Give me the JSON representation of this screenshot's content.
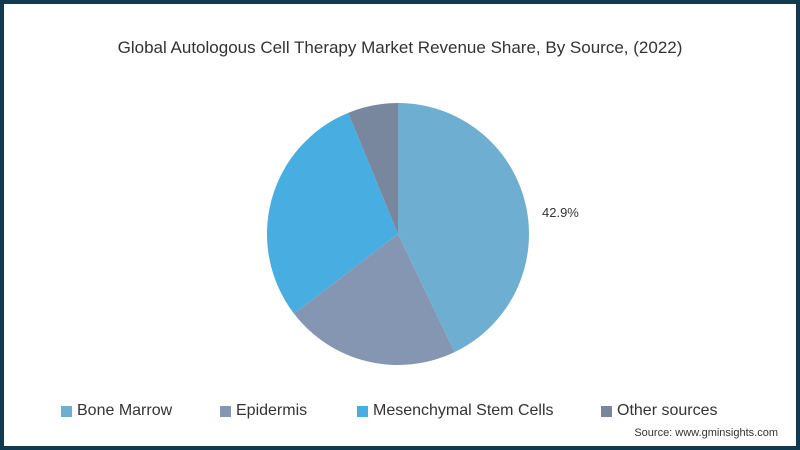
{
  "chart_data": {
    "type": "pie",
    "title": "Global Autologous Cell Therapy Market Revenue Share, By Source, (2022)",
    "categories": [
      "Bone Marrow",
      "Epidermis",
      "Mesenchymal Stem Cells",
      "Other sources"
    ],
    "values": [
      42.9,
      21.7,
      29.2,
      6.2
    ],
    "colors": [
      "#6eaed1",
      "#8596b2",
      "#48ade0",
      "#78879d"
    ],
    "data_labels": [
      {
        "category": "Bone Marrow",
        "text": "42.9%"
      }
    ],
    "legend_position": "bottom"
  },
  "title": "Global Autologous Cell Therapy Market Revenue Share, By Source, (2022)",
  "slice_label": "42.9%",
  "legend": [
    {
      "label": "Bone Marrow",
      "color": "#6eaed1"
    },
    {
      "label": "Epidermis",
      "color": "#8596b2"
    },
    {
      "label": "Mesenchymal Stem Cells",
      "color": "#48ade0"
    },
    {
      "label": "Other sources",
      "color": "#78879d"
    }
  ],
  "source": "Source: www.gminsights.com"
}
